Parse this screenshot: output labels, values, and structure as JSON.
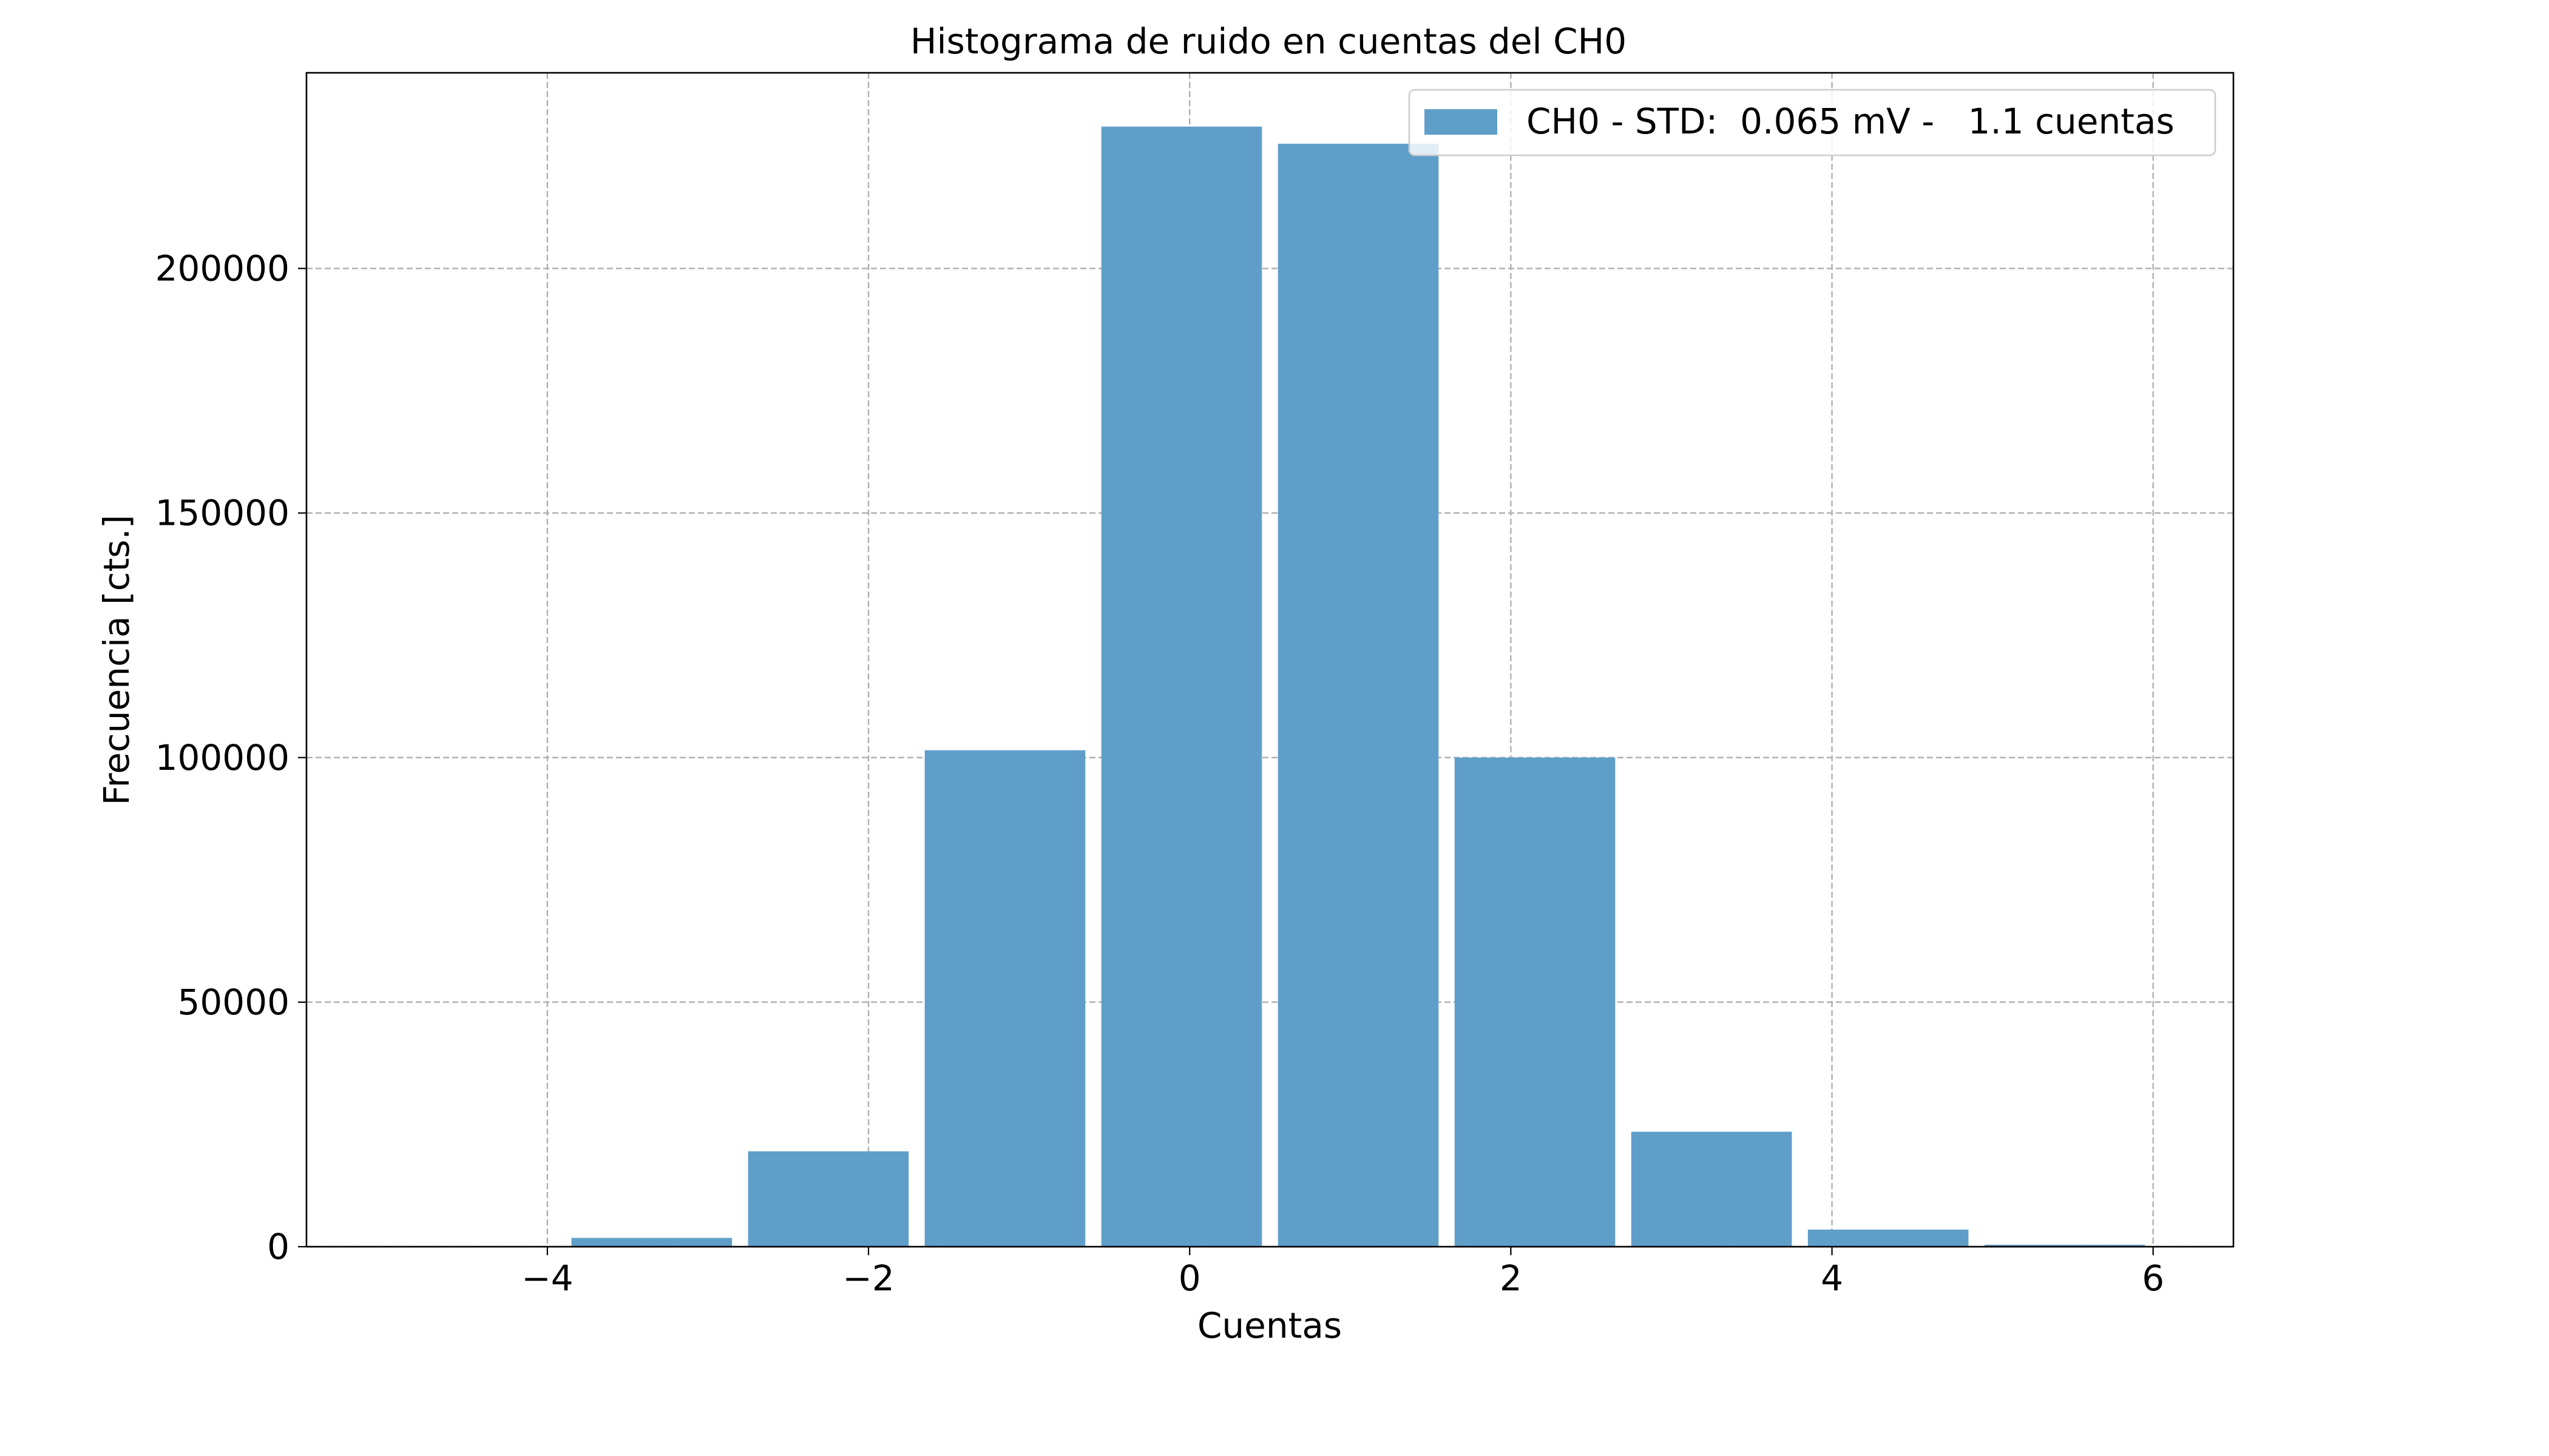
{
  "chart_data": {
    "type": "bar",
    "title": "Histograma de ruido en cuentas del CH0",
    "xlabel": "Cuentas",
    "ylabel": "Frecuencia [cts.]",
    "xlim": [
      -5.5,
      6.5
    ],
    "ylim": [
      0,
      240000
    ],
    "xticks": [
      -4,
      -2,
      0,
      2,
      4,
      6
    ],
    "xtick_labels": [
      "−4",
      "−2",
      "0",
      "2",
      "4",
      "6"
    ],
    "yticks": [
      0,
      50000,
      100000,
      150000,
      200000
    ],
    "ytick_labels": [
      "0",
      "50000",
      "100000",
      "150000",
      "200000"
    ],
    "grid": true,
    "legend_position": "top-right",
    "bar_color": "#5f9ec9",
    "series": [
      {
        "name": "CH0 - STD:  0.065 mV -   1.1 cuentas",
        "bars": [
          {
            "x0": -3.85,
            "x1": -2.85,
            "value": 1800
          },
          {
            "x0": -2.75,
            "x1": -1.75,
            "value": 19500
          },
          {
            "x0": -1.65,
            "x1": -0.65,
            "value": 101500
          },
          {
            "x0": -0.55,
            "x1": 0.45,
            "value": 229000
          },
          {
            "x0": 0.55,
            "x1": 1.55,
            "value": 225500
          },
          {
            "x0": 1.65,
            "x1": 2.65,
            "value": 100000
          },
          {
            "x0": 2.75,
            "x1": 3.75,
            "value": 23500
          },
          {
            "x0": 3.85,
            "x1": 4.85,
            "value": 3500
          },
          {
            "x0": 4.95,
            "x1": 5.95,
            "value": 400
          }
        ]
      }
    ]
  }
}
